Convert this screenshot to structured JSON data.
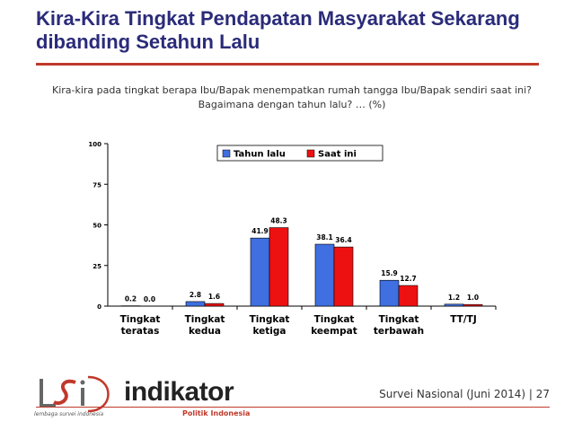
{
  "slide": {
    "title": "Kira-Kira Tingkat Pendapatan Masyarakat Sekarang dibanding Setahun Lalu",
    "subtitle": "Kira-kira pada tingkat berapa Ibu/Bapak menempatkan rumah tangga Ibu/Bapak sendiri saat ini? Bagaimana dengan tahun lalu? … (%)",
    "footer": "Survei Nasional (Juni 2014) | 27"
  },
  "logo": {
    "word": "indikator",
    "tagline": "Politik Indonesia",
    "left_tag": "lembaga survei indonesia"
  },
  "chart_data": {
    "type": "bar",
    "categories": [
      [
        "Tingkat",
        "teratas"
      ],
      [
        "Tingkat",
        "kedua"
      ],
      [
        "Tingkat",
        "ketiga"
      ],
      [
        "Tingkat",
        "keempat"
      ],
      [
        "Tingkat",
        "terbawah"
      ],
      [
        "TT/TJ"
      ]
    ],
    "series": [
      {
        "name": "Tahun lalu",
        "color": "#3f6fe0",
        "values": [
          0.2,
          2.8,
          41.9,
          38.1,
          15.9,
          1.2
        ],
        "labels": [
          "0.2",
          "2.8",
          "41.9",
          "38.1",
          "15.9",
          "1.2"
        ]
      },
      {
        "name": "Saat ini",
        "color": "#ee1111",
        "values": [
          0.0,
          1.6,
          48.3,
          36.4,
          12.7,
          1.0
        ],
        "labels": [
          "0.0",
          "1.6",
          "48.3",
          "36.4",
          "12.7",
          "1.0"
        ]
      }
    ],
    "ylim": [
      0,
      100
    ],
    "yticks": [
      0,
      25,
      50,
      75,
      100
    ],
    "legend": "top-center",
    "grid": false
  }
}
